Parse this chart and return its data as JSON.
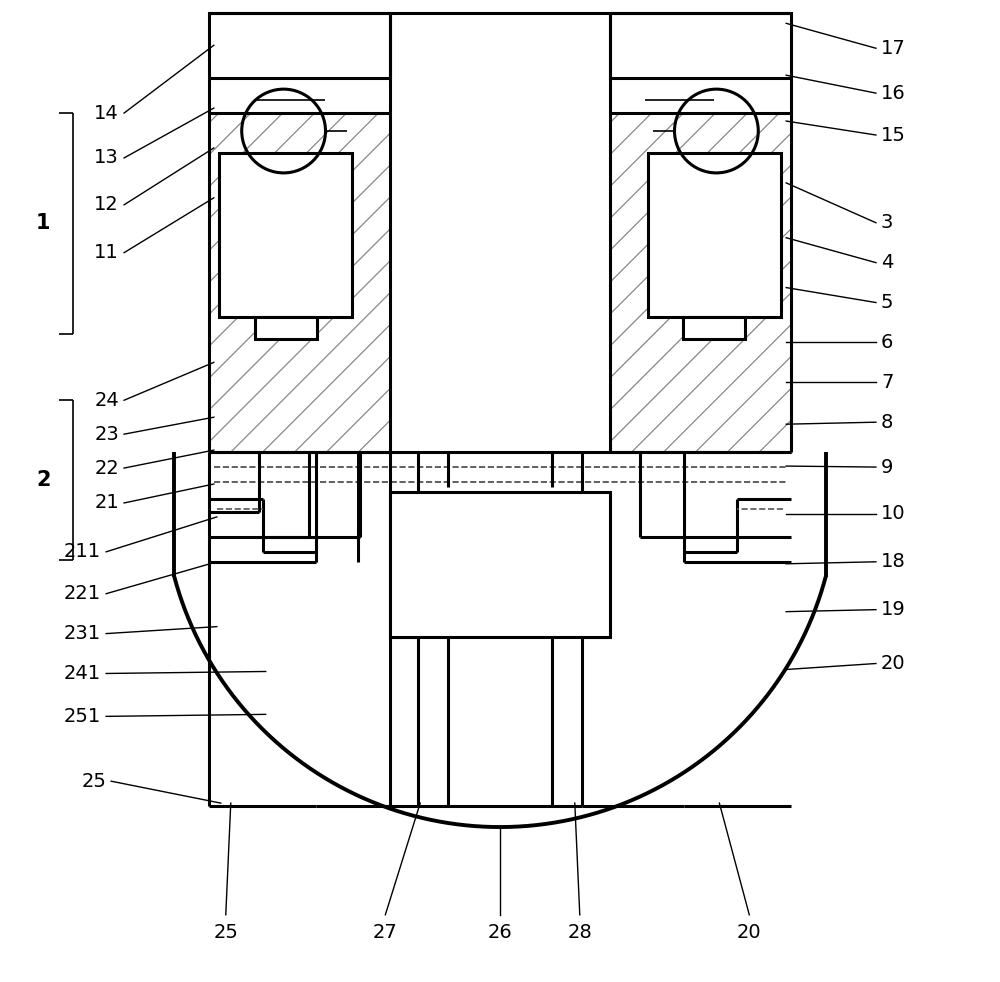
{
  "bg_color": "#ffffff",
  "black": "#000000",
  "gray": "#555555",
  "hatch_gray": "#888888",
  "font_size": 14,
  "lw_main": 2.2,
  "lw_thin": 1.2,
  "lw_thick": 2.8,
  "lw_ann": 1.0
}
